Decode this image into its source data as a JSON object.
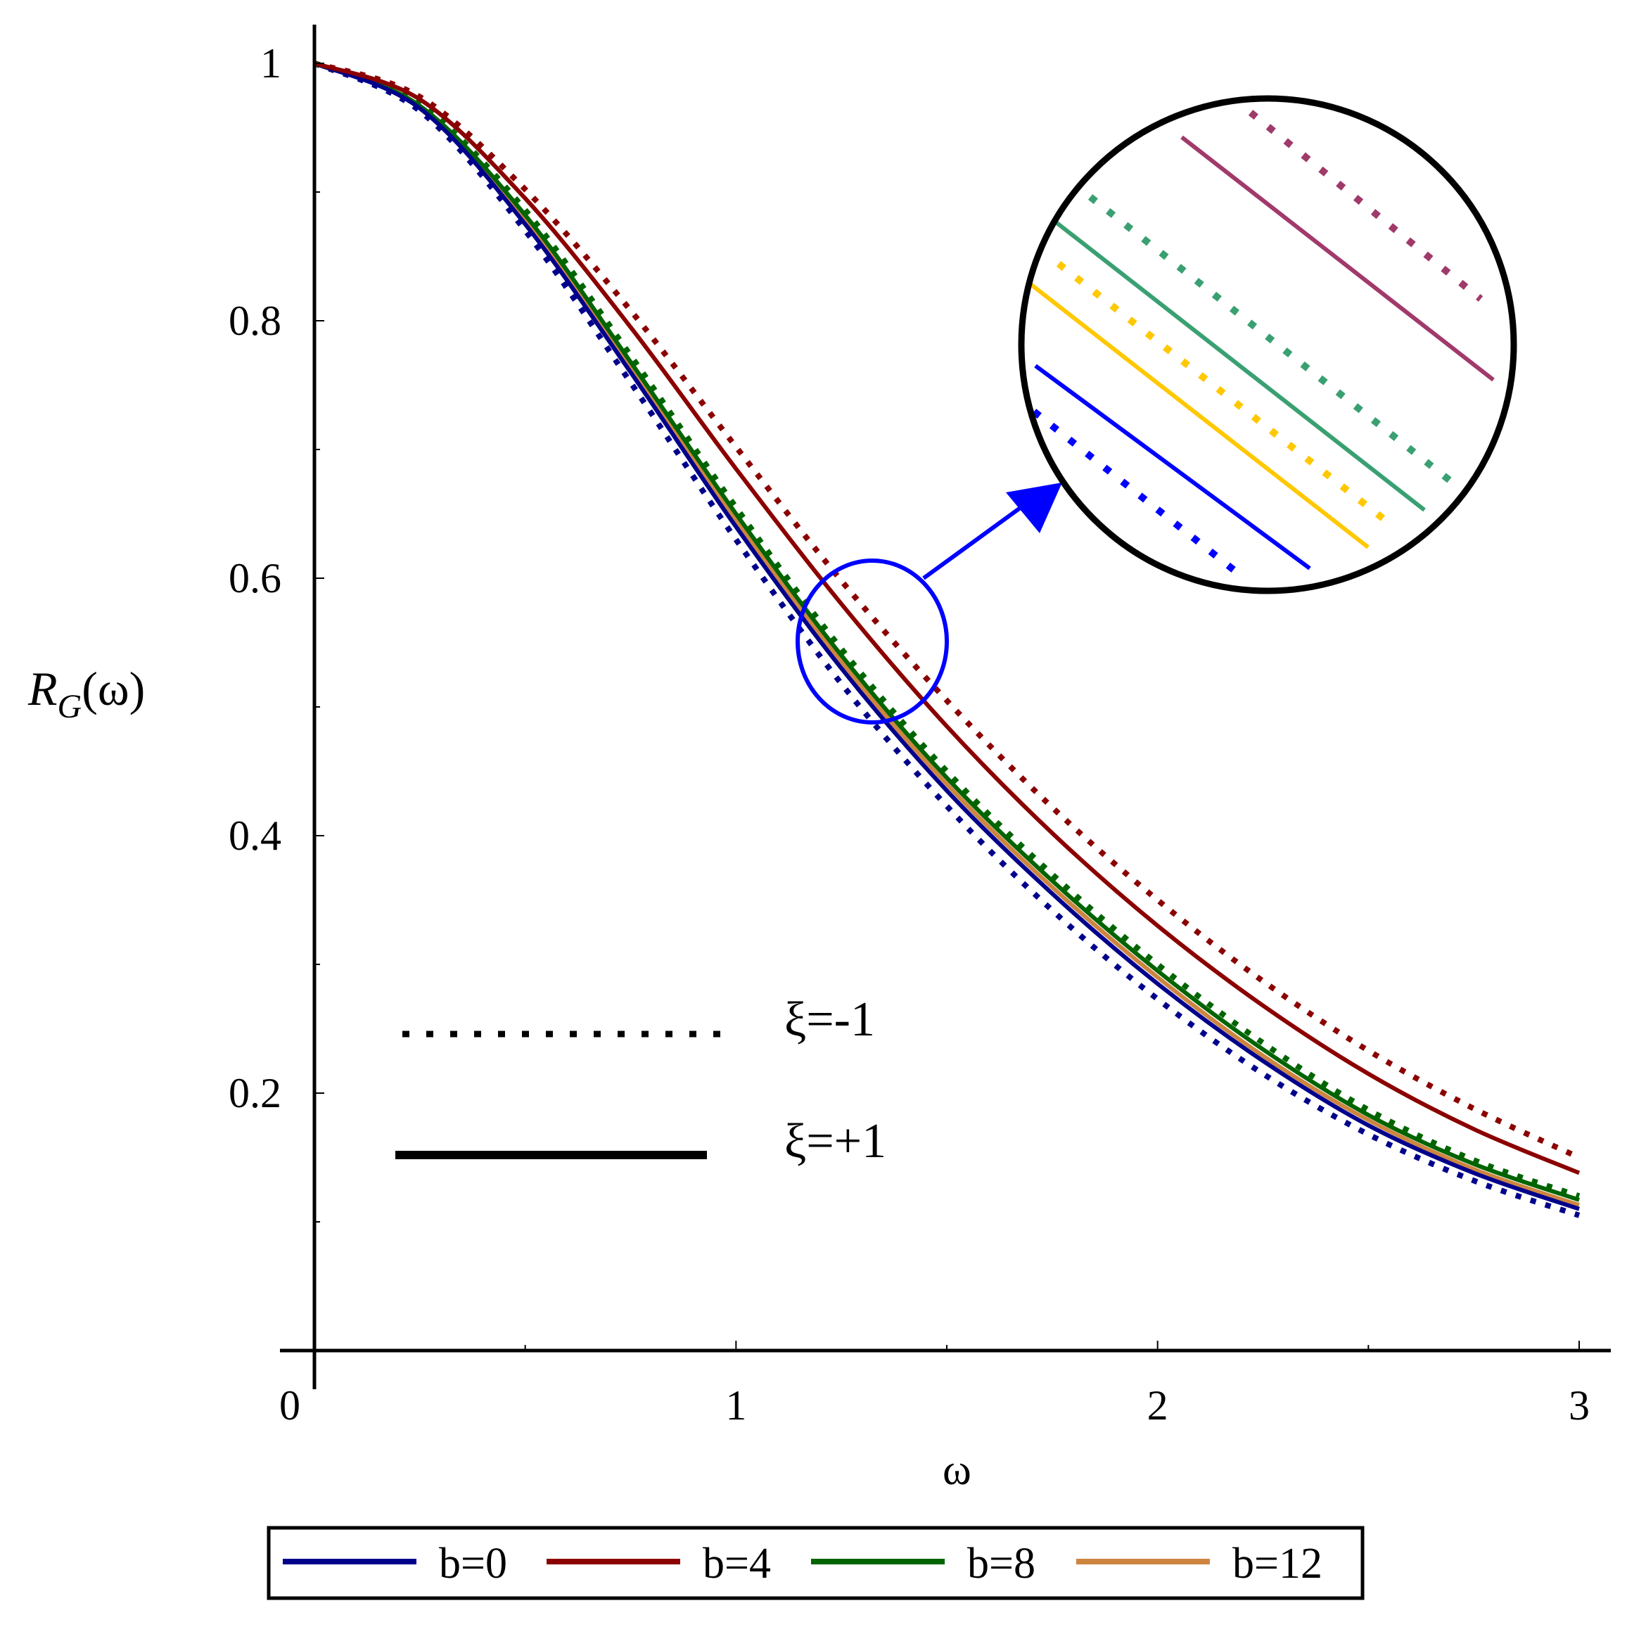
{
  "chart_data": {
    "type": "line",
    "xlabel": "ω",
    "ylabel": {
      "main": "R",
      "sub": "G",
      "arg": "(ω)"
    },
    "xlim": [
      0,
      3
    ],
    "ylim": [
      0,
      1.0
    ],
    "x_ticks": [
      "0",
      "1",
      "2",
      "3"
    ],
    "y_ticks": [
      "0.2",
      "0.4",
      "0.6",
      "0.8",
      "1"
    ],
    "grid": false,
    "x": [
      0,
      0.25,
      0.5,
      0.75,
      1.0,
      1.25,
      1.5,
      1.75,
      2.0,
      2.25,
      2.5,
      2.75,
      3.0
    ],
    "series": [
      {
        "name": "b=0",
        "color": "#00008b",
        "style": "solid",
        "values": [
          1.0,
          0.965,
          0.875,
          0.76,
          0.64,
          0.53,
          0.435,
          0.355,
          0.285,
          0.225,
          0.175,
          0.138,
          0.11
        ]
      },
      {
        "name": "b=0",
        "color": "#00008b",
        "style": "dotted",
        "values": [
          1.0,
          0.963,
          0.87,
          0.752,
          0.63,
          0.518,
          0.423,
          0.342,
          0.273,
          0.215,
          0.168,
          0.132,
          0.105
        ]
      },
      {
        "name": "b=4",
        "color": "#8b0000",
        "style": "solid",
        "values": [
          1.0,
          0.972,
          0.895,
          0.795,
          0.685,
          0.58,
          0.485,
          0.402,
          0.33,
          0.268,
          0.215,
          0.172,
          0.138
        ]
      },
      {
        "name": "b=4",
        "color": "#8b0000",
        "style": "dotted",
        "values": [
          1.0,
          0.974,
          0.902,
          0.808,
          0.702,
          0.598,
          0.505,
          0.422,
          0.35,
          0.287,
          0.233,
          0.188,
          0.15
        ]
      },
      {
        "name": "b=8",
        "color": "#006400",
        "style": "solid",
        "values": [
          1.0,
          0.967,
          0.882,
          0.768,
          0.65,
          0.54,
          0.445,
          0.365,
          0.295,
          0.234,
          0.183,
          0.145,
          0.117
        ]
      },
      {
        "name": "b=8",
        "color": "#006400",
        "style": "dotted",
        "values": [
          1.0,
          0.968,
          0.886,
          0.773,
          0.655,
          0.545,
          0.45,
          0.37,
          0.3,
          0.239,
          0.187,
          0.148,
          0.12
        ]
      },
      {
        "name": "b=12",
        "color": "#cd853f",
        "style": "solid",
        "values": [
          1.0,
          0.966,
          0.878,
          0.764,
          0.645,
          0.535,
          0.44,
          0.36,
          0.29,
          0.229,
          0.179,
          0.141,
          0.113
        ]
      }
    ],
    "legend": {
      "position": "bottom",
      "entries": [
        {
          "label": "b=0",
          "color": "#00008b"
        },
        {
          "label": "b=4",
          "color": "#8b0000"
        },
        {
          "label": "b=8",
          "color": "#006400"
        },
        {
          "label": "b=12",
          "color": "#cd853f"
        }
      ]
    },
    "style_key": {
      "position": "lower-left",
      "entries": [
        {
          "label": "ξ=-1",
          "style": "dotted"
        },
        {
          "label": "ξ=+1",
          "style": "solid"
        }
      ]
    },
    "inset": {
      "type": "zoom",
      "position": "top-right",
      "highlight_color": "#0000ff",
      "border_color": "#000000",
      "lines": [
        {
          "color": "#a03a6a",
          "style": "dotted"
        },
        {
          "color": "#a03a6a",
          "style": "solid"
        },
        {
          "color": "#3aa072",
          "style": "dotted"
        },
        {
          "color": "#3aa072",
          "style": "solid"
        },
        {
          "color": "#ffc800",
          "style": "dotted"
        },
        {
          "color": "#ffc800",
          "style": "solid"
        },
        {
          "color": "#0000ff",
          "style": "solid"
        },
        {
          "color": "#0000ff",
          "style": "dotted"
        }
      ]
    }
  }
}
